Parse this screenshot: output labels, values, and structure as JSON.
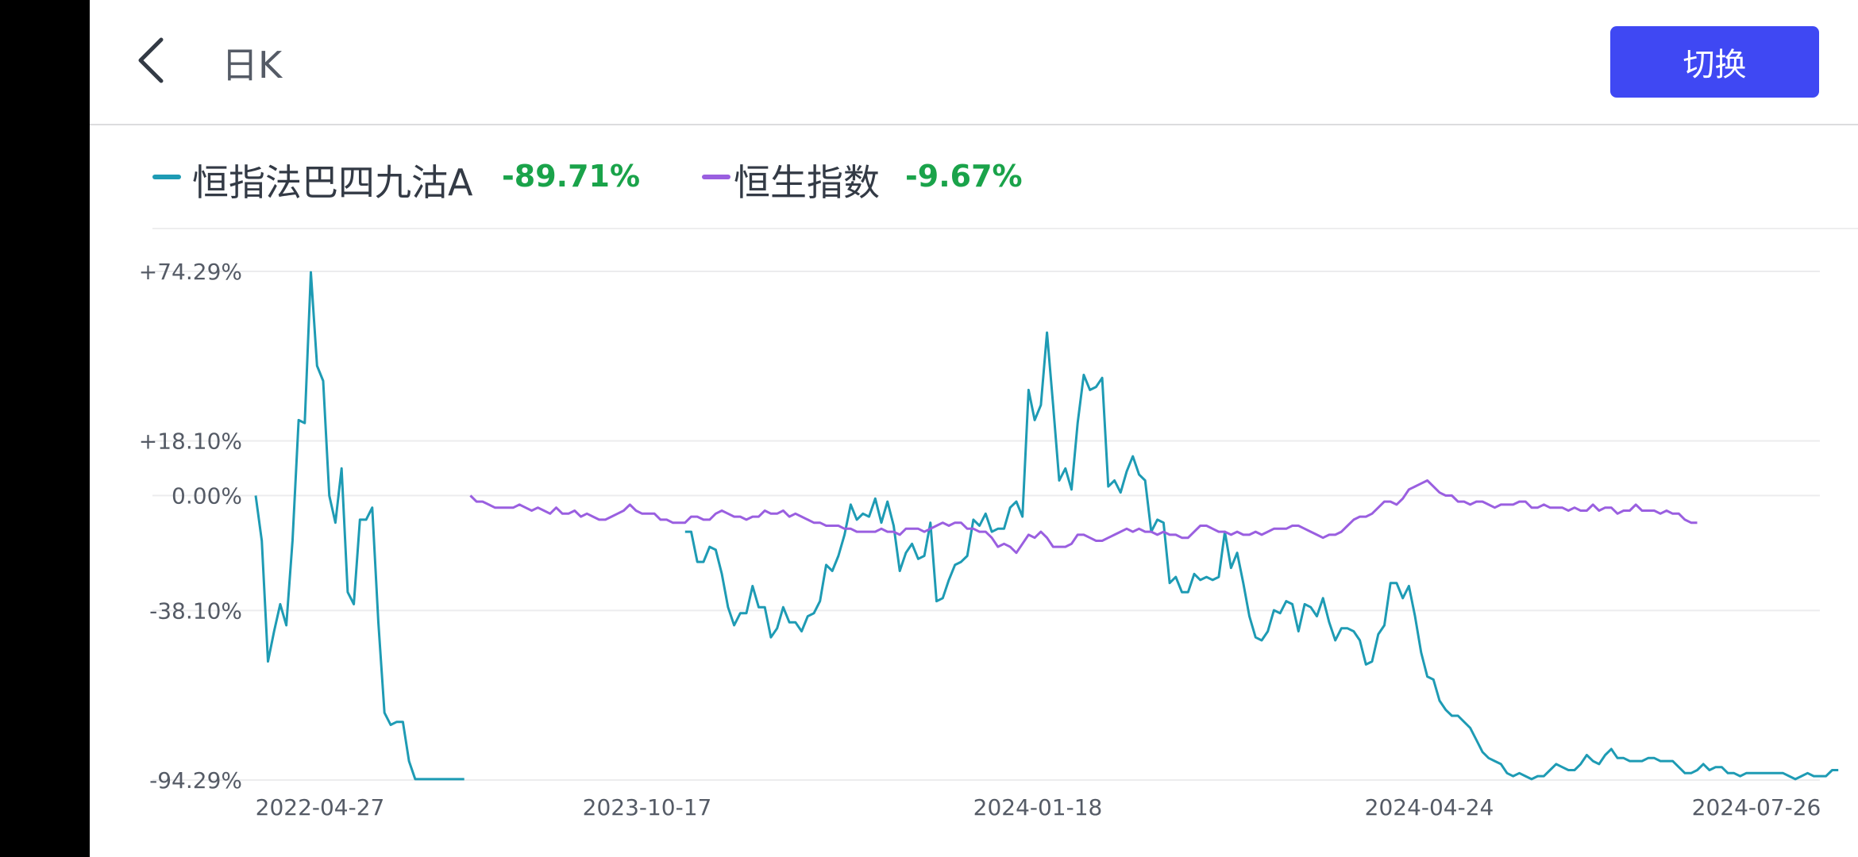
{
  "header": {
    "title": "日K",
    "switch_label": "切换"
  },
  "legend": [
    {
      "name": "恒指法巴四九沽A",
      "value": "-89.71%",
      "color": "#1e9bb4",
      "value_color": "#1aa34a"
    },
    {
      "name": "恒生指数",
      "value": "-9.67%",
      "color": "#9a5fe0",
      "value_color": "#1aa34a"
    }
  ],
  "chart_data": {
    "type": "line",
    "y_ticks": [
      "+74.29%",
      "+18.10%",
      "0.00%",
      "-38.10%",
      "-94.29%"
    ],
    "y_tick_values": [
      74.29,
      18.1,
      0.0,
      -38.1,
      -94.29
    ],
    "ylim": [
      -94.29,
      74.29
    ],
    "x_labels": [
      "2022-04-27",
      "2023-10-17",
      "2024-01-18",
      "2024-04-24",
      "2024-07-26"
    ],
    "grid": true,
    "series": [
      {
        "name": "恒指法巴四九沽A",
        "color": "#1e9bb4",
        "segments": [
          {
            "start": 0,
            "values": [
              0,
              -15,
              -55,
              -45,
              -36,
              -43,
              -15,
              25,
              24,
              74,
              43,
              38,
              0,
              -9,
              9,
              -32,
              -36,
              -8,
              -8,
              -4,
              -42,
              -72,
              -76,
              -75,
              -75,
              -88,
              -94,
              -94,
              -94,
              -94,
              -94,
              -94,
              -94,
              -94,
              -94
            ]
          },
          {
            "start": 70,
            "values": [
              -12,
              -12,
              -22,
              -22,
              -17,
              -18,
              -26,
              -37,
              -43,
              -39,
              -39,
              -30,
              -37,
              -37,
              -47,
              -44,
              -37,
              -42,
              -42,
              -45,
              -40,
              -39,
              -35,
              -23,
              -25,
              -20,
              -13,
              -3,
              -8,
              -6,
              -7,
              -1,
              -9,
              -2,
              -10,
              -25,
              -19,
              -16,
              -21,
              -20,
              -9,
              -35,
              -34,
              -28,
              -23,
              -22,
              -20,
              -8,
              -10,
              -6,
              -12,
              -11,
              -11,
              -4,
              -2,
              -7,
              35,
              25,
              30,
              54,
              30,
              5,
              9,
              2,
              24,
              40,
              35,
              36,
              39,
              3,
              5,
              1,
              8,
              13,
              7,
              5,
              -12,
              -8,
              -9,
              -29,
              -27,
              -32,
              -32,
              -26,
              -28,
              -27,
              -28,
              -27,
              -12,
              -24,
              -19,
              -29,
              -40,
              -47,
              -48,
              -45,
              -38,
              -39,
              -35,
              -36,
              -45,
              -36,
              -37,
              -40,
              -34,
              -42,
              -48,
              -44,
              -44,
              -45,
              -48,
              -56,
              -55,
              -46,
              -43,
              -29,
              -29,
              -34,
              -30,
              -40,
              -52,
              -60,
              -61,
              -68,
              -71,
              -73,
              -73,
              -75,
              -77,
              -81,
              -85,
              -87,
              -88,
              -89,
              -92,
              -93,
              -92,
              -93,
              -94,
              -93,
              -93,
              -91,
              -89,
              -90,
              -91,
              -91,
              -89,
              -86,
              -88,
              -89,
              -86,
              -84,
              -87,
              -87,
              -88,
              -88,
              -88,
              -87,
              -87,
              -88,
              -88,
              -88,
              -90,
              -92,
              -92,
              -91,
              -89,
              -91,
              -90,
              -90,
              -92,
              -92,
              -93,
              -92,
              -92,
              -92,
              -92,
              -92,
              -92,
              -92,
              -93,
              -94,
              -93,
              -92,
              -93,
              -93,
              -93,
              -91,
              -91
            ]
          }
        ]
      },
      {
        "name": "恒生指数",
        "color": "#9a5fe0",
        "segments": [
          {
            "start": 35,
            "values": [
              0,
              -2,
              -2,
              -3,
              -4,
              -4,
              -4,
              -4,
              -3,
              -4,
              -5,
              -4,
              -5,
              -6,
              -4,
              -6,
              -6,
              -5,
              -7,
              -6,
              -7,
              -8,
              -8,
              -7,
              -6,
              -5,
              -3,
              -5,
              -6,
              -6,
              -6,
              -8,
              -8,
              -9,
              -9,
              -9,
              -7,
              -7,
              -8,
              -8,
              -6,
              -5,
              -6,
              -7,
              -7,
              -8,
              -7,
              -7,
              -5,
              -6,
              -6,
              -5,
              -7,
              -6,
              -7,
              -8,
              -9,
              -9,
              -10,
              -10,
              -10,
              -11,
              -11,
              -12,
              -12,
              -12,
              -12,
              -11,
              -12,
              -12,
              -13,
              -11,
              -11,
              -11,
              -12,
              -11,
              -10,
              -9,
              -10,
              -9,
              -9,
              -11,
              -11,
              -12,
              -12,
              -14,
              -17,
              -16,
              -17,
              -19,
              -16,
              -13,
              -14,
              -12,
              -14,
              -17,
              -17,
              -17,
              -16,
              -13,
              -13,
              -14,
              -15,
              -15,
              -14,
              -13,
              -12,
              -11,
              -12,
              -11,
              -12,
              -12,
              -13,
              -12,
              -13,
              -13,
              -14,
              -14,
              -12,
              -10,
              -10,
              -11,
              -12,
              -12,
              -13,
              -12,
              -13,
              -13,
              -12,
              -13,
              -12,
              -11,
              -11,
              -11,
              -10,
              -10,
              -11,
              -12,
              -13,
              -14,
              -13,
              -13,
              -12,
              -10,
              -8,
              -7,
              -7,
              -6,
              -4,
              -2,
              -2,
              -3,
              -1,
              2,
              3,
              4,
              5,
              3,
              1,
              0,
              0,
              -2,
              -2,
              -3,
              -2,
              -2,
              -3,
              -4,
              -3,
              -3,
              -3,
              -2,
              -2,
              -4,
              -4,
              -3,
              -4,
              -4,
              -4,
              -5,
              -4,
              -5,
              -5,
              -3,
              -5,
              -4,
              -4,
              -6,
              -5,
              -5,
              -3,
              -5,
              -5,
              -5,
              -6,
              -5,
              -6,
              -6,
              -8,
              -9,
              -9
            ]
          }
        ]
      }
    ]
  }
}
